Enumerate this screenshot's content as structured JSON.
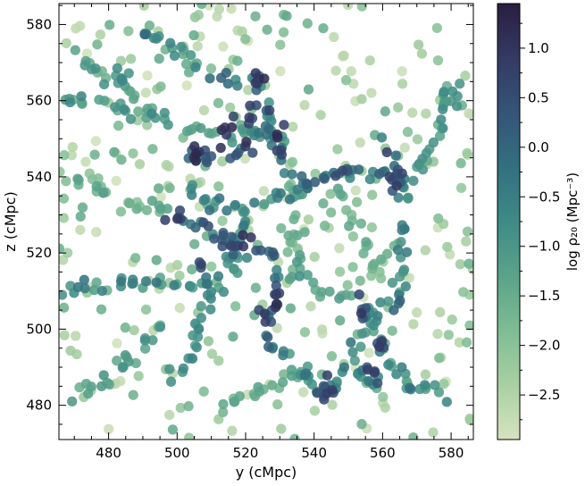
{
  "chart_data": {
    "type": "scatter",
    "title": "",
    "xlabel": "y (cMpc)",
    "ylabel": "z (cMpc)",
    "xlim": [
      465.5,
      586.5
    ],
    "ylim": [
      471,
      585.5
    ],
    "xticks": [
      480,
      500,
      520,
      540,
      560,
      580
    ],
    "yticks": [
      480,
      500,
      520,
      540,
      560,
      580
    ],
    "xtick_labels": [
      "480",
      "500",
      "520",
      "540",
      "560",
      "580"
    ],
    "ytick_labels": [
      "480",
      "500",
      "520",
      "540",
      "560",
      "580"
    ],
    "grid": false,
    "marker_size_cMpc": 1.6,
    "colorbar": {
      "label": "log ρ₂₀ (Mpc⁻³)",
      "range": [
        -2.95,
        1.45
      ],
      "ticks": [
        1.0,
        0.5,
        0.0,
        -0.5,
        -1.0,
        -1.5,
        -2.0,
        -2.5
      ],
      "tick_labels": [
        "1.0",
        "0.5",
        "0.0",
        "−0.5",
        "−1.0",
        "−1.5",
        "−2.0",
        "−2.5"
      ],
      "colormap": [
        "#d6e3bf",
        "#a9d0a2",
        "#7fbc94",
        "#5aa38a",
        "#3f8a86",
        "#33707f",
        "#355478",
        "#343a65",
        "#2a1e3f"
      ]
    },
    "filaments": [
      {
        "path": [
          [
            466,
            561
          ],
          [
            478,
            560
          ],
          [
            492,
            556
          ],
          [
            506,
            552
          ],
          [
            516,
            550
          ],
          [
            524,
            552
          ],
          [
            532,
            550
          ]
        ],
        "density": [
          -1.6,
          -0.6
        ]
      },
      {
        "path": [
          [
            468,
            574
          ],
          [
            478,
            567
          ],
          [
            488,
            562
          ],
          [
            492,
            556
          ]
        ],
        "density": [
          -1.9,
          -0.8
        ]
      },
      {
        "path": [
          [
            490,
            579
          ],
          [
            496,
            575
          ],
          [
            503,
            571
          ],
          [
            509,
            566
          ]
        ],
        "density": [
          -1.6,
          -0.6
        ]
      },
      {
        "path": [
          [
            509,
            566
          ],
          [
            517,
            565
          ],
          [
            524,
            566
          ],
          [
            526,
            560
          ]
        ],
        "density": [
          -1.0,
          0.2
        ]
      },
      {
        "path": [
          [
            526,
            560
          ],
          [
            527,
            552
          ],
          [
            530,
            546
          ],
          [
            534,
            540
          ],
          [
            538,
            539
          ],
          [
            546,
            540
          ],
          [
            552,
            541
          ],
          [
            557,
            541
          ],
          [
            562,
            540
          ],
          [
            566,
            538
          ]
        ],
        "density": [
          -0.8,
          0.2
        ]
      },
      {
        "path": [
          [
            560,
            549
          ],
          [
            564,
            543
          ],
          [
            566,
            538
          ]
        ],
        "density": [
          -0.6,
          0.8
        ]
      },
      {
        "path": [
          [
            566,
            538
          ],
          [
            571,
            543
          ],
          [
            576,
            551
          ],
          [
            578,
            558
          ],
          [
            580,
            566
          ]
        ],
        "density": [
          -1.6,
          -0.6
        ]
      },
      {
        "path": [
          [
            578,
            558
          ],
          [
            582,
            562
          ],
          [
            584,
            565
          ]
        ],
        "density": [
          -1.4,
          -0.4
        ]
      },
      {
        "path": [
          [
            526,
            552
          ],
          [
            521,
            548
          ],
          [
            515,
            545
          ],
          [
            508,
            545
          ],
          [
            500,
            546
          ]
        ],
        "density": [
          -0.6,
          0.8
        ]
      },
      {
        "path": [
          [
            502,
            537
          ],
          [
            508,
            534
          ],
          [
            515,
            532
          ],
          [
            522,
            532
          ],
          [
            530,
            534
          ],
          [
            536,
            537
          ],
          [
            540,
            538
          ]
        ],
        "density": [
          -1.2,
          -0.2
        ]
      },
      {
        "path": [
          [
            522,
            532
          ],
          [
            519,
            526
          ],
          [
            516,
            520
          ],
          [
            512,
            515
          ],
          [
            506,
            511
          ],
          [
            497,
            512
          ],
          [
            487,
            512
          ],
          [
            476,
            511
          ],
          [
            467,
            510
          ]
        ],
        "density": [
          -1.4,
          -0.2
        ]
      },
      {
        "path": [
          [
            500,
            530
          ],
          [
            506,
            527
          ],
          [
            512,
            524
          ],
          [
            517,
            521
          ],
          [
            522,
            520
          ],
          [
            527,
            521
          ]
        ],
        "density": [
          -0.8,
          0.6
        ]
      },
      {
        "path": [
          [
            527,
            521
          ],
          [
            529,
            515
          ],
          [
            529,
            510
          ],
          [
            528,
            505
          ],
          [
            526,
            500
          ],
          [
            528,
            494
          ]
        ],
        "density": [
          -1.0,
          0.4
        ]
      },
      {
        "path": [
          [
            520,
            520
          ],
          [
            516,
            515
          ],
          [
            511,
            510
          ],
          [
            508,
            504
          ],
          [
            506,
            498
          ],
          [
            503,
            491
          ],
          [
            498,
            486
          ]
        ],
        "density": [
          -1.3,
          -0.5
        ]
      },
      {
        "path": [
          [
            496,
            500
          ],
          [
            492,
            498
          ],
          [
            486,
            493
          ],
          [
            480,
            488
          ],
          [
            475,
            485
          ],
          [
            468,
            482
          ]
        ],
        "density": [
          -1.6,
          -0.8
        ]
      },
      {
        "path": [
          [
            528,
            495
          ],
          [
            533,
            491
          ],
          [
            538,
            487
          ],
          [
            541,
            484
          ],
          [
            543,
            482
          ]
        ],
        "density": [
          -1.2,
          -0.2
        ]
      },
      {
        "path": [
          [
            543,
            482
          ],
          [
            548,
            488
          ],
          [
            552,
            494
          ],
          [
            555,
            500
          ],
          [
            558,
            505
          ],
          [
            563,
            509
          ],
          [
            566,
            515
          ],
          [
            566,
            522
          ],
          [
            566,
            530
          ],
          [
            566,
            538
          ]
        ],
        "density": [
          -1.2,
          -0.2
        ]
      },
      {
        "path": [
          [
            555,
            506
          ],
          [
            559,
            498
          ],
          [
            561,
            492
          ],
          [
            566,
            488
          ],
          [
            573,
            485
          ],
          [
            578,
            482
          ]
        ],
        "density": [
          -1.4,
          -0.4
        ]
      },
      {
        "path": [
          [
            552,
            508
          ],
          [
            546,
            509
          ],
          [
            541,
            510
          ],
          [
            536,
            514
          ],
          [
            534,
            519
          ]
        ],
        "density": [
          -1.6,
          -0.8
        ]
      },
      {
        "path": [
          [
            534,
            540
          ],
          [
            534,
            530
          ],
          [
            534,
            520
          ],
          [
            533,
            512
          ]
        ],
        "density": [
          -2.0,
          -1.2
        ]
      },
      {
        "path": [
          [
            546,
            536
          ],
          [
            550,
            530
          ],
          [
            554,
            524
          ],
          [
            557,
            518
          ],
          [
            560,
            511
          ]
        ],
        "density": [
          -2.0,
          -1.2
        ]
      },
      {
        "path": [
          [
            470,
            540
          ],
          [
            478,
            536
          ],
          [
            486,
            533
          ],
          [
            494,
            532
          ],
          [
            500,
            530
          ]
        ],
        "density": [
          -2.0,
          -1.2
        ]
      },
      {
        "path": [
          [
            540,
            490
          ],
          [
            534,
            488
          ],
          [
            527,
            484
          ],
          [
            520,
            482
          ],
          [
            512,
            480
          ]
        ],
        "density": [
          -1.9,
          -1.0
        ]
      },
      {
        "path": [
          [
            550,
            488
          ],
          [
            556,
            486
          ],
          [
            563,
            486
          ],
          [
            569,
            484
          ]
        ],
        "density": [
          -1.2,
          -0.2
        ]
      }
    ],
    "clumps": [
      {
        "center": [
          524,
          566
        ],
        "radius": 1.5,
        "n": 5,
        "density": [
          0.6,
          1.3
        ]
      },
      {
        "center": [
          523,
          557
        ],
        "radius": 2.2,
        "n": 7,
        "density": [
          0.2,
          1.0
        ]
      },
      {
        "center": [
          516,
          550
        ],
        "radius": 2.0,
        "n": 8,
        "density": [
          0.5,
          1.2
        ]
      },
      {
        "center": [
          530,
          549
        ],
        "radius": 1.8,
        "n": 6,
        "density": [
          0.4,
          1.2
        ]
      },
      {
        "center": [
          505,
          546
        ],
        "radius": 1.5,
        "n": 5,
        "density": [
          0.6,
          1.3
        ]
      },
      {
        "center": [
          564,
          539
        ],
        "radius": 1.8,
        "n": 7,
        "density": [
          0.3,
          1.1
        ]
      },
      {
        "center": [
          500,
          530
        ],
        "radius": 1.5,
        "n": 4,
        "density": [
          0.3,
          1.0
        ]
      },
      {
        "center": [
          513,
          524
        ],
        "radius": 1.5,
        "n": 5,
        "density": [
          0.1,
          0.8
        ]
      },
      {
        "center": [
          520,
          522
        ],
        "radius": 1.3,
        "n": 4,
        "density": [
          0.5,
          1.2
        ]
      },
      {
        "center": [
          506,
          518
        ],
        "radius": 1.2,
        "n": 3,
        "density": [
          0.3,
          1.0
        ]
      },
      {
        "center": [
          530,
          511
        ],
        "radius": 1.0,
        "n": 3,
        "density": [
          0.3,
          1.0
        ]
      },
      {
        "center": [
          527,
          504
        ],
        "radius": 1.4,
        "n": 5,
        "density": [
          0.5,
          1.2
        ]
      },
      {
        "center": [
          542,
          484
        ],
        "radius": 1.8,
        "n": 8,
        "density": [
          0.2,
          1.0
        ]
      },
      {
        "center": [
          555,
          506
        ],
        "radius": 1.4,
        "n": 5,
        "density": [
          0.2,
          1.0
        ]
      },
      {
        "center": [
          559,
          496
        ],
        "radius": 1.2,
        "n": 4,
        "density": [
          0.2,
          0.9
        ]
      },
      {
        "center": [
          557,
          489
        ],
        "radius": 1.4,
        "n": 5,
        "density": [
          0.0,
          0.8
        ]
      },
      {
        "center": [
          564,
          507
        ],
        "radius": 1.2,
        "n": 4,
        "density": [
          -0.4,
          0.4
        ]
      },
      {
        "center": [
          547,
          541
        ],
        "radius": 1.4,
        "n": 4,
        "density": [
          0.0,
          0.7
        ]
      },
      {
        "center": [
          493,
          577
        ],
        "radius": 1.4,
        "n": 4,
        "density": [
          -0.8,
          0.0
        ]
      },
      {
        "center": [
          483,
          566
        ],
        "radius": 1.6,
        "n": 5,
        "density": [
          -1.0,
          -0.2
        ]
      }
    ],
    "field": {
      "n": 340,
      "density": [
        -2.9,
        -1.4
      ]
    }
  }
}
